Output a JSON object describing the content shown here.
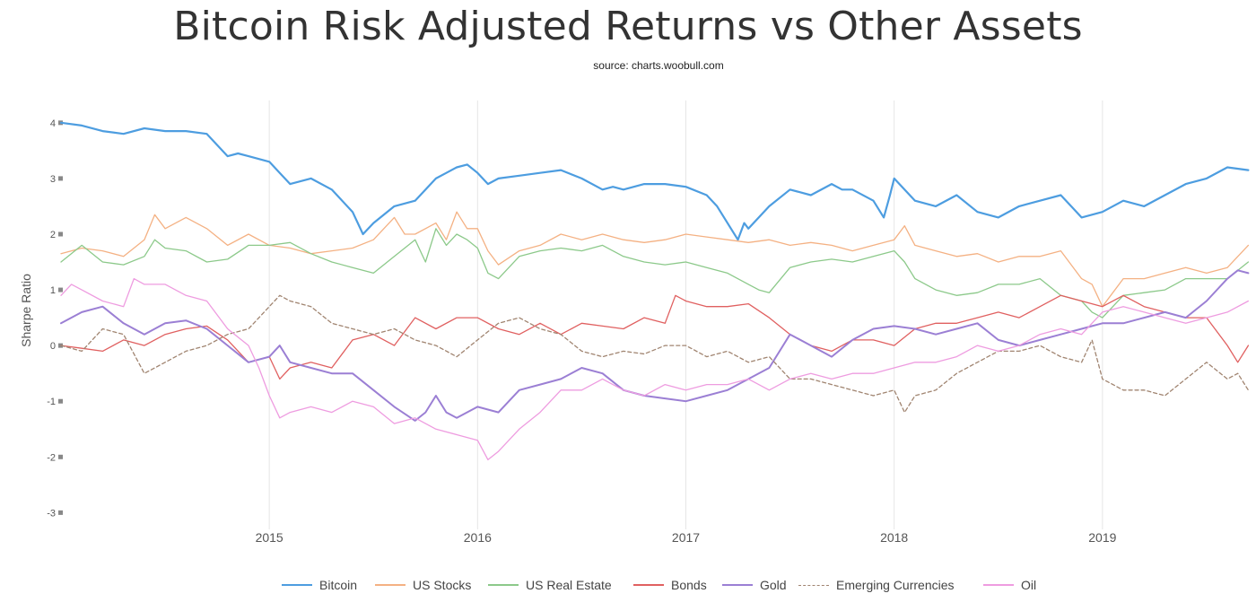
{
  "title": "Bitcoin Risk Adjusted Returns vs Other Assets",
  "subtitle": "source: charts.woobull.com",
  "chart_data": {
    "type": "line",
    "ylabel": "Sharpe Ratio",
    "xlim": [
      2014.0,
      2019.72
    ],
    "ylim": [
      -3.3,
      4.4
    ],
    "y_ticks": [
      4,
      3,
      2,
      1,
      0,
      -1,
      -2,
      -3
    ],
    "x_ticks": [
      2015,
      2016,
      2017,
      2018,
      2019
    ],
    "grid": "vertical",
    "legend": "bottom",
    "series": [
      {
        "name": "Bitcoin",
        "color": "#4d9de0",
        "dash": false,
        "width": 2.2,
        "x": [
          2014.0,
          2014.1,
          2014.2,
          2014.3,
          2014.4,
          2014.5,
          2014.6,
          2014.7,
          2014.8,
          2014.85,
          2014.9,
          2015.0,
          2015.05,
          2015.1,
          2015.2,
          2015.3,
          2015.4,
          2015.45,
          2015.5,
          2015.6,
          2015.7,
          2015.8,
          2015.85,
          2015.9,
          2015.95,
          2016.0,
          2016.05,
          2016.1,
          2016.2,
          2016.3,
          2016.4,
          2016.5,
          2016.6,
          2016.65,
          2016.7,
          2016.8,
          2016.9,
          2017.0,
          2017.1,
          2017.15,
          2017.2,
          2017.25,
          2017.28,
          2017.3,
          2017.4,
          2017.5,
          2017.6,
          2017.7,
          2017.75,
          2017.8,
          2017.9,
          2017.95,
          2017.98,
          2018.0,
          2018.1,
          2018.2,
          2018.3,
          2018.4,
          2018.5,
          2018.6,
          2018.7,
          2018.8,
          2018.85,
          2018.9,
          2019.0,
          2019.1,
          2019.2,
          2019.3,
          2019.4,
          2019.5,
          2019.6,
          2019.7
        ],
        "y": [
          4.0,
          3.95,
          3.85,
          3.8,
          3.9,
          3.85,
          3.85,
          3.8,
          3.4,
          3.45,
          3.4,
          3.3,
          3.1,
          2.9,
          3.0,
          2.8,
          2.4,
          2.0,
          2.2,
          2.5,
          2.6,
          3.0,
          3.1,
          3.2,
          3.25,
          3.1,
          2.9,
          3.0,
          3.05,
          3.1,
          3.15,
          3.0,
          2.8,
          2.85,
          2.8,
          2.9,
          2.9,
          2.85,
          2.7,
          2.5,
          2.2,
          1.9,
          2.2,
          2.1,
          2.5,
          2.8,
          2.7,
          2.9,
          2.8,
          2.8,
          2.6,
          2.3,
          2.7,
          3.0,
          2.6,
          2.5,
          2.7,
          2.4,
          2.3,
          2.5,
          2.6,
          2.7,
          2.5,
          2.3,
          2.4,
          2.6,
          2.5,
          2.7,
          2.9,
          3.0,
          3.2,
          3.15
        ]
      },
      {
        "name": "US Stocks",
        "color": "#f4b183",
        "dash": false,
        "width": 1.3,
        "x": [
          2014.0,
          2014.1,
          2014.2,
          2014.3,
          2014.4,
          2014.45,
          2014.5,
          2014.6,
          2014.7,
          2014.8,
          2014.9,
          2015.0,
          2015.1,
          2015.2,
          2015.3,
          2015.4,
          2015.5,
          2015.6,
          2015.65,
          2015.7,
          2015.8,
          2015.85,
          2015.9,
          2015.95,
          2016.0,
          2016.05,
          2016.1,
          2016.2,
          2016.3,
          2016.4,
          2016.5,
          2016.6,
          2016.7,
          2016.8,
          2016.9,
          2017.0,
          2017.1,
          2017.2,
          2017.3,
          2017.4,
          2017.5,
          2017.6,
          2017.7,
          2017.8,
          2017.9,
          2018.0,
          2018.05,
          2018.1,
          2018.2,
          2018.3,
          2018.4,
          2018.5,
          2018.6,
          2018.7,
          2018.8,
          2018.9,
          2018.95,
          2019.0,
          2019.1,
          2019.2,
          2019.3,
          2019.4,
          2019.5,
          2019.6,
          2019.7
        ],
        "y": [
          1.65,
          1.75,
          1.7,
          1.6,
          1.9,
          2.35,
          2.1,
          2.3,
          2.1,
          1.8,
          2.0,
          1.8,
          1.75,
          1.65,
          1.7,
          1.75,
          1.9,
          2.3,
          2.0,
          2.0,
          2.2,
          1.9,
          2.4,
          2.1,
          2.1,
          1.7,
          1.45,
          1.7,
          1.8,
          2.0,
          1.9,
          2.0,
          1.9,
          1.85,
          1.9,
          2.0,
          1.95,
          1.9,
          1.85,
          1.9,
          1.8,
          1.85,
          1.8,
          1.7,
          1.8,
          1.9,
          2.15,
          1.8,
          1.7,
          1.6,
          1.65,
          1.5,
          1.6,
          1.6,
          1.7,
          1.2,
          1.1,
          0.7,
          1.2,
          1.2,
          1.3,
          1.4,
          1.3,
          1.4,
          1.8
        ]
      },
      {
        "name": "US Real Estate",
        "color": "#8cc98a",
        "dash": false,
        "width": 1.3,
        "x": [
          2014.0,
          2014.1,
          2014.2,
          2014.3,
          2014.4,
          2014.45,
          2014.5,
          2014.6,
          2014.7,
          2014.8,
          2014.9,
          2015.0,
          2015.1,
          2015.2,
          2015.3,
          2015.4,
          2015.5,
          2015.6,
          2015.7,
          2015.75,
          2015.8,
          2015.85,
          2015.9,
          2015.95,
          2016.0,
          2016.05,
          2016.1,
          2016.2,
          2016.3,
          2016.4,
          2016.5,
          2016.6,
          2016.7,
          2016.8,
          2016.9,
          2017.0,
          2017.1,
          2017.2,
          2017.3,
          2017.35,
          2017.4,
          2017.5,
          2017.6,
          2017.7,
          2017.8,
          2017.9,
          2018.0,
          2018.05,
          2018.1,
          2018.2,
          2018.3,
          2018.4,
          2018.5,
          2018.6,
          2018.7,
          2018.8,
          2018.9,
          2018.95,
          2019.0,
          2019.1,
          2019.2,
          2019.3,
          2019.4,
          2019.5,
          2019.6,
          2019.7
        ],
        "y": [
          1.5,
          1.8,
          1.5,
          1.45,
          1.6,
          1.9,
          1.75,
          1.7,
          1.5,
          1.55,
          1.8,
          1.8,
          1.85,
          1.65,
          1.5,
          1.4,
          1.3,
          1.6,
          1.9,
          1.5,
          2.1,
          1.8,
          2.0,
          1.9,
          1.75,
          1.3,
          1.2,
          1.6,
          1.7,
          1.75,
          1.7,
          1.8,
          1.6,
          1.5,
          1.45,
          1.5,
          1.4,
          1.3,
          1.1,
          1.0,
          0.95,
          1.4,
          1.5,
          1.55,
          1.5,
          1.6,
          1.7,
          1.5,
          1.2,
          1.0,
          0.9,
          0.95,
          1.1,
          1.1,
          1.2,
          0.9,
          0.8,
          0.6,
          0.5,
          0.9,
          0.95,
          1.0,
          1.2,
          1.2,
          1.2,
          1.5
        ]
      },
      {
        "name": "Bonds",
        "color": "#e06060",
        "dash": false,
        "width": 1.3,
        "x": [
          2014.0,
          2014.1,
          2014.2,
          2014.3,
          2014.4,
          2014.5,
          2014.6,
          2014.7,
          2014.8,
          2014.9,
          2015.0,
          2015.05,
          2015.1,
          2015.2,
          2015.3,
          2015.4,
          2015.5,
          2015.6,
          2015.7,
          2015.8,
          2015.9,
          2016.0,
          2016.1,
          2016.2,
          2016.3,
          2016.4,
          2016.5,
          2016.6,
          2016.7,
          2016.8,
          2016.9,
          2016.95,
          2017.0,
          2017.1,
          2017.2,
          2017.3,
          2017.4,
          2017.5,
          2017.6,
          2017.7,
          2017.8,
          2017.9,
          2018.0,
          2018.1,
          2018.2,
          2018.3,
          2018.4,
          2018.5,
          2018.6,
          2018.7,
          2018.8,
          2018.9,
          2019.0,
          2019.1,
          2019.2,
          2019.3,
          2019.4,
          2019.5,
          2019.6,
          2019.65,
          2019.7
        ],
        "y": [
          0.0,
          -0.05,
          -0.1,
          0.1,
          0.0,
          0.2,
          0.3,
          0.35,
          0.1,
          -0.3,
          -0.2,
          -0.6,
          -0.4,
          -0.3,
          -0.4,
          0.1,
          0.2,
          0.0,
          0.5,
          0.3,
          0.5,
          0.5,
          0.3,
          0.2,
          0.4,
          0.2,
          0.4,
          0.35,
          0.3,
          0.5,
          0.4,
          0.9,
          0.8,
          0.7,
          0.7,
          0.75,
          0.5,
          0.2,
          0.0,
          -0.1,
          0.1,
          0.1,
          0.0,
          0.3,
          0.4,
          0.4,
          0.5,
          0.6,
          0.5,
          0.7,
          0.9,
          0.8,
          0.7,
          0.9,
          0.7,
          0.6,
          0.5,
          0.5,
          0.0,
          -0.3,
          0.0
        ]
      },
      {
        "name": "Gold",
        "color": "#9b7fd4",
        "dash": false,
        "width": 2.0,
        "x": [
          2014.0,
          2014.1,
          2014.2,
          2014.3,
          2014.4,
          2014.5,
          2014.6,
          2014.7,
          2014.8,
          2014.9,
          2015.0,
          2015.05,
          2015.1,
          2015.2,
          2015.3,
          2015.4,
          2015.5,
          2015.6,
          2015.7,
          2015.75,
          2015.8,
          2015.85,
          2015.9,
          2016.0,
          2016.1,
          2016.2,
          2016.3,
          2016.4,
          2016.5,
          2016.6,
          2016.7,
          2016.8,
          2016.9,
          2017.0,
          2017.1,
          2017.2,
          2017.3,
          2017.4,
          2017.5,
          2017.6,
          2017.7,
          2017.8,
          2017.9,
          2018.0,
          2018.1,
          2018.2,
          2018.3,
          2018.4,
          2018.5,
          2018.6,
          2018.7,
          2018.8,
          2018.9,
          2019.0,
          2019.1,
          2019.2,
          2019.3,
          2019.4,
          2019.5,
          2019.6,
          2019.65,
          2019.7
        ],
        "y": [
          0.4,
          0.6,
          0.7,
          0.4,
          0.2,
          0.4,
          0.45,
          0.3,
          0.0,
          -0.3,
          -0.2,
          0.0,
          -0.3,
          -0.4,
          -0.5,
          -0.5,
          -0.8,
          -1.1,
          -1.35,
          -1.2,
          -0.9,
          -1.2,
          -1.3,
          -1.1,
          -1.2,
          -0.8,
          -0.7,
          -0.6,
          -0.4,
          -0.5,
          -0.8,
          -0.9,
          -0.95,
          -1.0,
          -0.9,
          -0.8,
          -0.6,
          -0.4,
          0.2,
          0.0,
          -0.2,
          0.1,
          0.3,
          0.35,
          0.3,
          0.2,
          0.3,
          0.4,
          0.1,
          0.0,
          0.1,
          0.2,
          0.3,
          0.4,
          0.4,
          0.5,
          0.6,
          0.5,
          0.8,
          1.2,
          1.35,
          1.3
        ]
      },
      {
        "name": "Emerging Currencies",
        "color": "#a08470",
        "dash": true,
        "width": 1.3,
        "x": [
          2014.0,
          2014.1,
          2014.2,
          2014.3,
          2014.4,
          2014.5,
          2014.6,
          2014.7,
          2014.8,
          2014.9,
          2015.0,
          2015.05,
          2015.1,
          2015.2,
          2015.3,
          2015.4,
          2015.5,
          2015.6,
          2015.7,
          2015.8,
          2015.9,
          2016.0,
          2016.1,
          2016.2,
          2016.3,
          2016.4,
          2016.5,
          2016.6,
          2016.7,
          2016.8,
          2016.9,
          2017.0,
          2017.1,
          2017.2,
          2017.3,
          2017.4,
          2017.5,
          2017.6,
          2017.7,
          2017.8,
          2017.9,
          2018.0,
          2018.05,
          2018.1,
          2018.2,
          2018.3,
          2018.4,
          2018.5,
          2018.6,
          2018.7,
          2018.8,
          2018.9,
          2018.95,
          2019.0,
          2019.1,
          2019.2,
          2019.3,
          2019.4,
          2019.5,
          2019.6,
          2019.65,
          2019.7
        ],
        "y": [
          0.0,
          -0.1,
          0.3,
          0.2,
          -0.5,
          -0.3,
          -0.1,
          0.0,
          0.2,
          0.3,
          0.7,
          0.9,
          0.8,
          0.7,
          0.4,
          0.3,
          0.2,
          0.3,
          0.1,
          0.0,
          -0.2,
          0.1,
          0.4,
          0.5,
          0.3,
          0.2,
          -0.1,
          -0.2,
          -0.1,
          -0.15,
          0.0,
          0.0,
          -0.2,
          -0.1,
          -0.3,
          -0.2,
          -0.6,
          -0.6,
          -0.7,
          -0.8,
          -0.9,
          -0.8,
          -1.2,
          -0.9,
          -0.8,
          -0.5,
          -0.3,
          -0.1,
          -0.1,
          0.0,
          -0.2,
          -0.3,
          0.1,
          -0.6,
          -0.8,
          -0.8,
          -0.9,
          -0.6,
          -0.3,
          -0.6,
          -0.5,
          -0.8
        ]
      },
      {
        "name": "Oil",
        "color": "#ee9ce0",
        "dash": false,
        "width": 1.3,
        "x": [
          2014.0,
          2014.05,
          2014.1,
          2014.2,
          2014.3,
          2014.35,
          2014.4,
          2014.5,
          2014.6,
          2014.7,
          2014.8,
          2014.9,
          2014.95,
          2015.0,
          2015.05,
          2015.1,
          2015.2,
          2015.3,
          2015.4,
          2015.5,
          2015.6,
          2015.7,
          2015.8,
          2015.9,
          2016.0,
          2016.05,
          2016.1,
          2016.2,
          2016.3,
          2016.4,
          2016.5,
          2016.6,
          2016.7,
          2016.8,
          2016.9,
          2017.0,
          2017.1,
          2017.2,
          2017.3,
          2017.4,
          2017.5,
          2017.6,
          2017.7,
          2017.8,
          2017.9,
          2018.0,
          2018.1,
          2018.2,
          2018.3,
          2018.4,
          2018.5,
          2018.6,
          2018.7,
          2018.8,
          2018.9,
          2019.0,
          2019.1,
          2019.2,
          2019.3,
          2019.4,
          2019.5,
          2019.6,
          2019.7
        ],
        "y": [
          0.9,
          1.1,
          1.0,
          0.8,
          0.7,
          1.2,
          1.1,
          1.1,
          0.9,
          0.8,
          0.3,
          0.0,
          -0.4,
          -0.9,
          -1.3,
          -1.2,
          -1.1,
          -1.2,
          -1.0,
          -1.1,
          -1.4,
          -1.3,
          -1.5,
          -1.6,
          -1.7,
          -2.05,
          -1.9,
          -1.5,
          -1.2,
          -0.8,
          -0.8,
          -0.6,
          -0.8,
          -0.9,
          -0.7,
          -0.8,
          -0.7,
          -0.7,
          -0.6,
          -0.8,
          -0.6,
          -0.5,
          -0.6,
          -0.5,
          -0.5,
          -0.4,
          -0.3,
          -0.3,
          -0.2,
          0.0,
          -0.1,
          0.0,
          0.2,
          0.3,
          0.2,
          0.6,
          0.7,
          0.6,
          0.5,
          0.4,
          0.5,
          0.6,
          0.8
        ]
      }
    ]
  }
}
